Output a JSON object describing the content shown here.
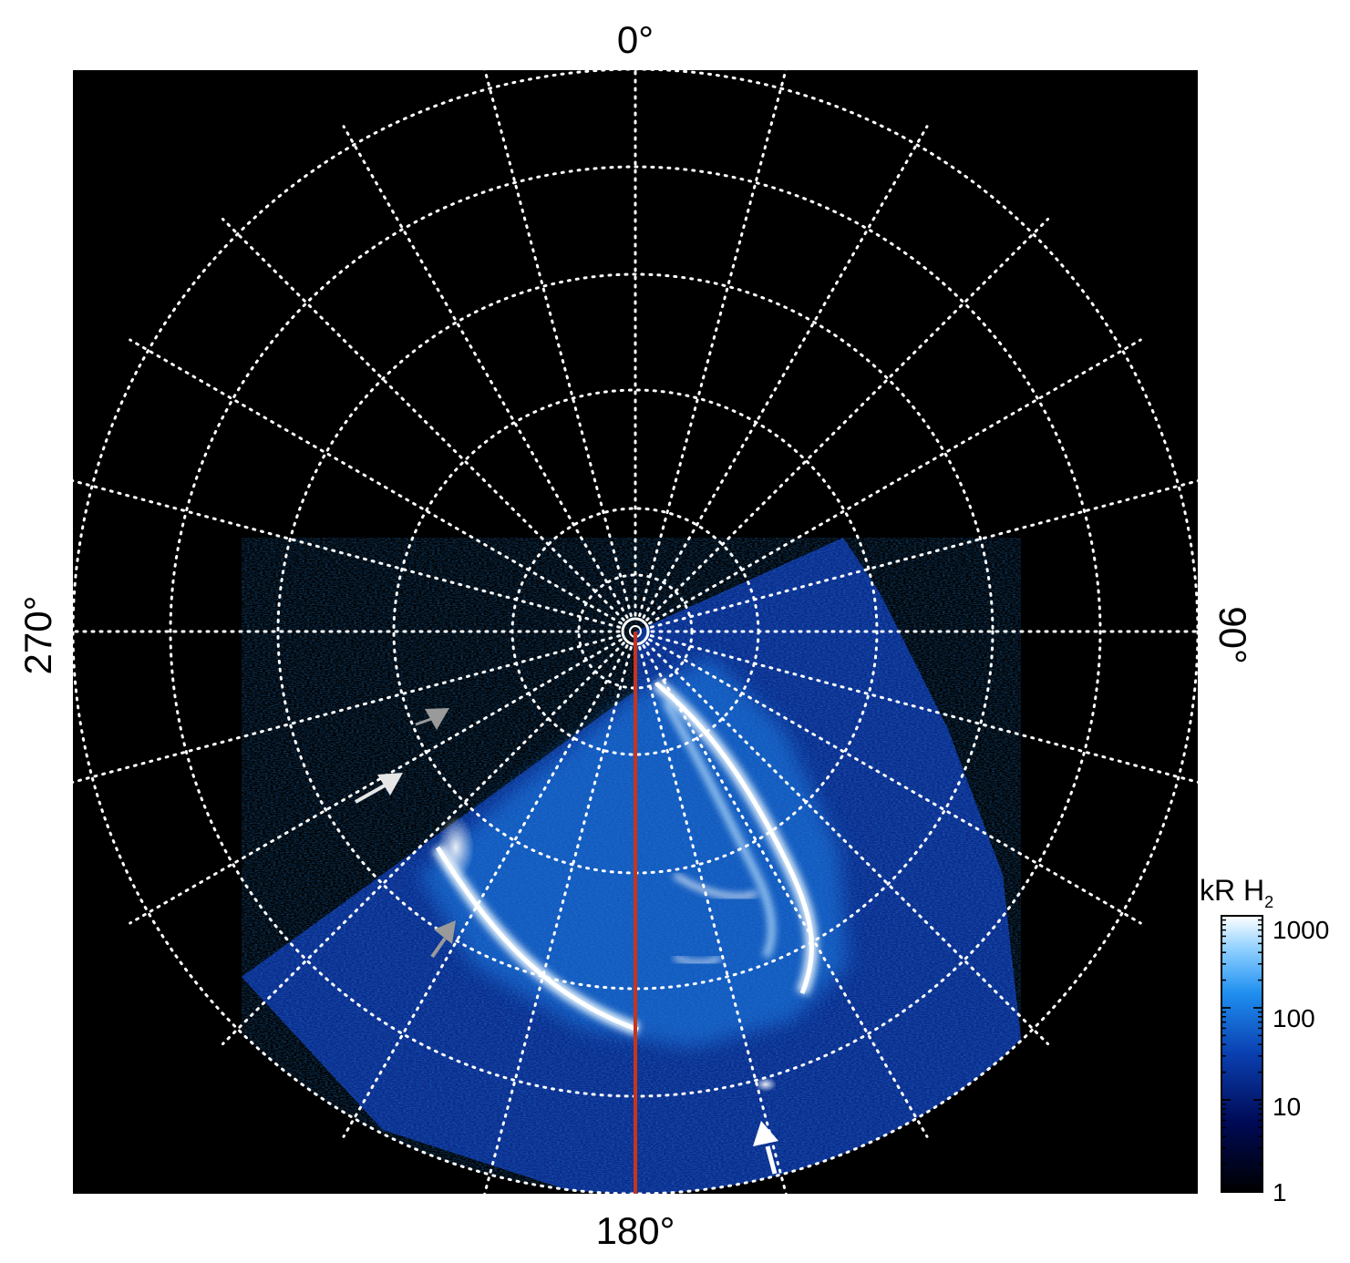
{
  "image": {
    "labels": {
      "top": "0°",
      "right": "90°",
      "bottom": "180°",
      "left": "270°"
    },
    "colorbar": {
      "title_main": "kR H",
      "title_sub": "2",
      "ticks": [
        "1000",
        "100",
        "10",
        "1"
      ],
      "tick_values": [
        1000,
        100,
        10,
        1
      ]
    },
    "colors": {
      "background": "#000000",
      "grid": "#ffffff",
      "meridian_line": "#c8341c",
      "aurora_low": "#0a1a6e",
      "aurora_mid": "#1f7be0",
      "aurora_high": "#ffffff",
      "arrow_white": "#ffffff",
      "arrow_gray": "#9a9a9a"
    },
    "arrows": [
      {
        "name": "white-arrow-upper-left",
        "color": "#e6e6e6"
      },
      {
        "name": "gray-arrow-upper-left",
        "color": "#9a9a9a"
      },
      {
        "name": "gray-arrow-lower-left",
        "color": "#9a9a9a"
      },
      {
        "name": "white-arrow-bottom",
        "color": "#ffffff"
      }
    ]
  }
}
